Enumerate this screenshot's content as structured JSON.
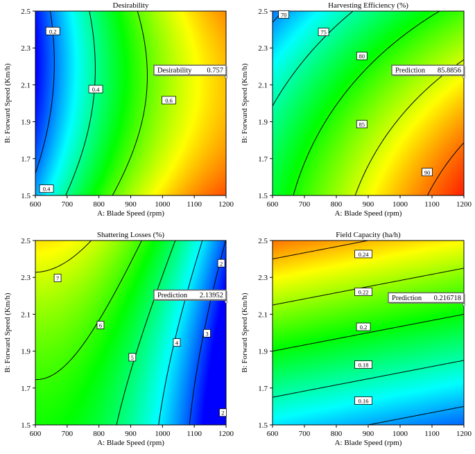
{
  "chart_data": [
    {
      "type": "contour",
      "title": "Desirability",
      "xlabel": "A: Blade Speed (rpm)",
      "ylabel": "B: Forward Speed (Km/h)",
      "xlim": [
        600,
        1200
      ],
      "ylim": [
        1.5,
        2.5
      ],
      "xticks": [
        "600",
        "700",
        "800",
        "900",
        "1000",
        "1100",
        "1200"
      ],
      "yticks": [
        "1.5",
        "1.7",
        "1.9",
        "2.1",
        "2.3",
        "2.5"
      ],
      "colormap": [
        "#0000ff",
        "#00ffff",
        "#00ff00",
        "#ffff00",
        "#ff0000"
      ],
      "color_range": [
        0.1,
        0.95
      ],
      "field": {
        "model": "desirability"
      },
      "contour_levels": [
        0.2,
        0.4,
        0.6
      ],
      "contour_labels": [
        {
          "text": "0.2",
          "x": 655,
          "y": 2.39
        },
        {
          "text": "0.4",
          "x": 790,
          "y": 2.075
        },
        {
          "text": "0.4",
          "x": 635,
          "y": 1.535
        },
        {
          "text": "0.6",
          "x": 1020,
          "y": 2.015
        }
      ],
      "prediction": {
        "label": "Desirability",
        "value": "0.757",
        "x": 1200,
        "y": 2.15
      }
    },
    {
      "type": "contour",
      "title": "Harvesting Efficiency (%)",
      "xlabel": "A: Blade Speed (rpm)",
      "ylabel": "B: Forward Speed (Km/h)",
      "xlim": [
        600,
        1200
      ],
      "ylim": [
        1.5,
        2.5
      ],
      "xticks": [
        "600",
        "700",
        "800",
        "900",
        "1000",
        "1100",
        "1200"
      ],
      "yticks": [
        "1.5",
        "1.7",
        "1.9",
        "2.1",
        "2.3",
        "2.5"
      ],
      "colormap": [
        "#0000ff",
        "#00ffff",
        "#00ff00",
        "#ffff00",
        "#ff0000"
      ],
      "color_range": [
        66,
        93
      ],
      "field": {
        "model": "harvesting_efficiency"
      },
      "contour_levels": [
        70,
        75,
        80,
        85,
        90
      ],
      "contour_labels": [
        {
          "text": "70",
          "x": 635,
          "y": 2.48
        },
        {
          "text": "75",
          "x": 760,
          "y": 2.385
        },
        {
          "text": "80",
          "x": 880,
          "y": 2.255
        },
        {
          "text": "85",
          "x": 880,
          "y": 1.885
        },
        {
          "text": "90",
          "x": 1085,
          "y": 1.625
        }
      ],
      "prediction": {
        "label": "Prediction",
        "value": "85.8856",
        "x": 1200,
        "y": 2.15
      }
    },
    {
      "type": "contour",
      "title": "Shattering Losses (%)",
      "xlabel": "A: Blade Speed (rpm)",
      "ylabel": "B: Forward Speed (Km/h)",
      "xlim": [
        600,
        1200
      ],
      "ylim": [
        1.5,
        2.5
      ],
      "xticks": [
        "600",
        "700",
        "800",
        "900",
        "1000",
        "1100",
        "1200"
      ],
      "yticks": [
        "1.5",
        "1.7",
        "1.9",
        "2.1",
        "2.3",
        "2.5"
      ],
      "colormap": [
        "#0000ff",
        "#00ffff",
        "#00ff00",
        "#ffff00",
        "#ff0000"
      ],
      "color_range": [
        1.5,
        7.8
      ],
      "field": {
        "model": "shattering_losses"
      },
      "contour_levels": [
        2,
        3,
        4,
        5,
        6,
        7
      ],
      "contour_labels": [
        {
          "text": "7",
          "x": 670,
          "y": 2.295
        },
        {
          "text": "6",
          "x": 805,
          "y": 2.04
        },
        {
          "text": "5",
          "x": 905,
          "y": 1.865
        },
        {
          "text": "4",
          "x": 1045,
          "y": 1.945
        },
        {
          "text": "3",
          "x": 1140,
          "y": 1.995
        },
        {
          "text": "2",
          "x": 1185,
          "y": 2.375
        },
        {
          "text": "2",
          "x": 1190,
          "y": 1.565
        }
      ],
      "prediction": {
        "label": "Prediction",
        "value": "2.13952",
        "x": 1200,
        "y": 2.175
      }
    },
    {
      "type": "contour",
      "title": "Field Capacity (ha/h)",
      "xlabel": "A: Blade Speed (rpm)",
      "ylabel": "B: Forward Speed (Km/h)",
      "xlim": [
        600,
        1200
      ],
      "ylim": [
        1.5,
        2.5
      ],
      "xticks": [
        "600",
        "700",
        "800",
        "900",
        "1000",
        "1100",
        "1200"
      ],
      "yticks": [
        "1.5",
        "1.7",
        "1.9",
        "2.1",
        "2.3",
        "2.5"
      ],
      "colormap": [
        "#0000ff",
        "#00ffff",
        "#00ff00",
        "#ffff00",
        "#ff0000"
      ],
      "color_range": [
        0.14,
        0.262
      ],
      "field": {
        "model": "field_capacity"
      },
      "contour_levels": [
        0.16,
        0.18,
        0.2,
        0.22,
        0.24
      ],
      "contour_labels": [
        {
          "text": "0.24",
          "x": 885,
          "y": 2.425
        },
        {
          "text": "0.22",
          "x": 885,
          "y": 2.22
        },
        {
          "text": "0.2",
          "x": 885,
          "y": 2.03
        },
        {
          "text": "0.18",
          "x": 885,
          "y": 1.825
        },
        {
          "text": "0.16",
          "x": 885,
          "y": 1.63
        }
      ],
      "prediction": {
        "label": "Prediction",
        "value": "0.216718",
        "x": 1200,
        "y": 2.16
      }
    }
  ]
}
